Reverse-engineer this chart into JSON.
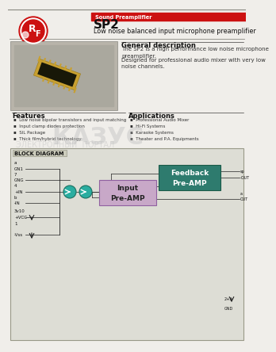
{
  "title": "SP2",
  "subtitle": "Low noise balanced input microphone preamplifier",
  "category_label": "Sound Preamplifier",
  "page_bg": "#f0eeea",
  "header_red": "#cc1111",
  "general_desc_title": "General description",
  "general_desc_text1": "The SP2 is a high performance low noise microphone\npreamplifier.",
  "general_desc_text2": "Designed for professional audio mixer with very low\nnoise channels.",
  "features_title": "Features",
  "features": [
    "Low noise bipolar transistors and input matching",
    "Input clamp diodes protection",
    "SIL Package",
    "Thick film/hybrid technology"
  ],
  "applications_title": "Applications",
  "applications": [
    "Professional Audio Mixer",
    "Hi-Fi Systems",
    "Karaoke Systems",
    "Theater and P.A. Equipments"
  ],
  "block_diagram_title": "BLOCK DIAGRAM",
  "left_labels": [
    "a",
    "GN1",
    "7",
    "GNG",
    "4",
    "+IN",
    "b",
    "-IN",
    "3v10",
    "+VCC",
    "1",
    "-Vss"
  ],
  "right_labels_top": [
    "sp",
    "-OUT"
  ],
  "right_labels_bottom": [
    "a",
    "OUT",
    "2+3",
    "GND"
  ],
  "feedback_box_color": "#2e7b6e",
  "feedback_box_text_color": "#ffffff",
  "feedback_box_text": "Feedback\nPre-AMP",
  "input_box_color": "#c8a8c8",
  "input_box_text_color": "#222222",
  "input_box_text": "Input\nPre-AMP",
  "circle_color": "#2aada0",
  "diagram_bg": "#ddddd5",
  "diagram_border": "#999988",
  "watermark_text": "КАЗУС",
  "watermark_sub": "ЭЛЕКТРОННЫЙ  ПОРТАЛ",
  "watermark_color": "#bbbbbb",
  "img_bg": "#b8b4aa",
  "chip_color": "#c8a030",
  "chip_dark": "#1a1a0a",
  "separator_color": "#888880",
  "text_dark": "#111111",
  "text_med": "#333333",
  "line_color": "#222222"
}
